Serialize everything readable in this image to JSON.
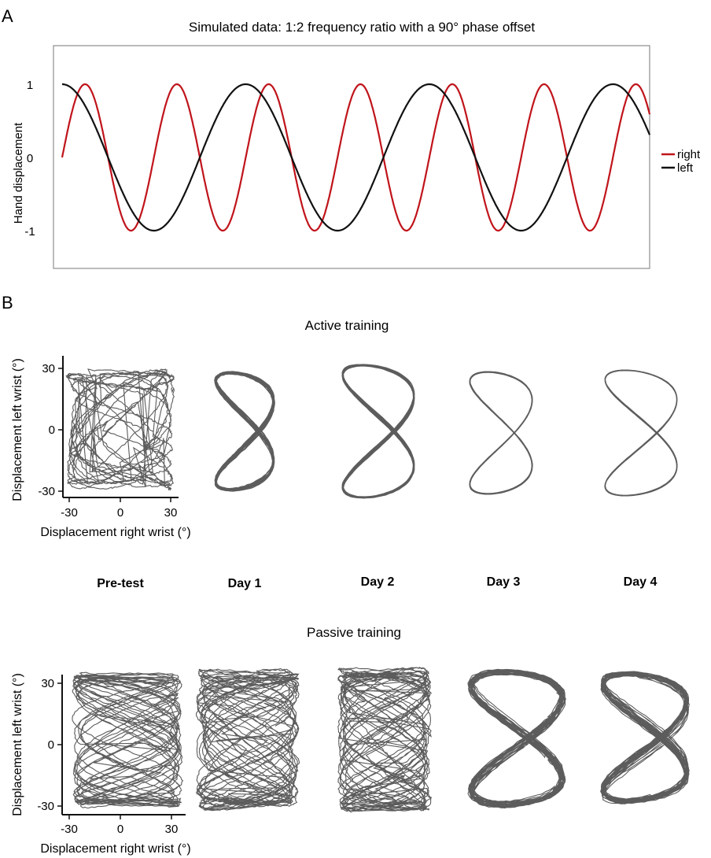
{
  "panel_a": {
    "letter": "A",
    "chart_data": {
      "type": "line",
      "title": "Simulated data: 1:2 frequency ratio with a 90° phase offset",
      "xlabel": "",
      "ylabel": "Hand displacement",
      "ylim": [
        -1.5,
        1.5
      ],
      "xlim": [
        0,
        6.4
      ],
      "yticks": [
        "1",
        "0",
        "-1"
      ],
      "legend_position": "right",
      "series": [
        {
          "name": "right",
          "color": "#c0141b",
          "formula": "sin(2*pi*f*x)",
          "frequency": 1
        },
        {
          "name": "left",
          "color": "#111111",
          "formula": "cos(2*pi*f*x)",
          "frequency": 0.5
        }
      ]
    }
  },
  "panel_b": {
    "letter": "B",
    "active_title": "Active training",
    "passive_title": "Passive training",
    "conditions": [
      "Pre-test",
      "Day 1",
      "Day 2",
      "Day 3",
      "Day 4"
    ],
    "xlabel": "Displacement right wrist (°)",
    "ylabel": "Displacement left wrist (°)",
    "xticks": [
      "-30",
      "0",
      "30"
    ],
    "yticks": [
      "30",
      "0",
      "-30"
    ],
    "trace_color": "#4a4a4a"
  }
}
